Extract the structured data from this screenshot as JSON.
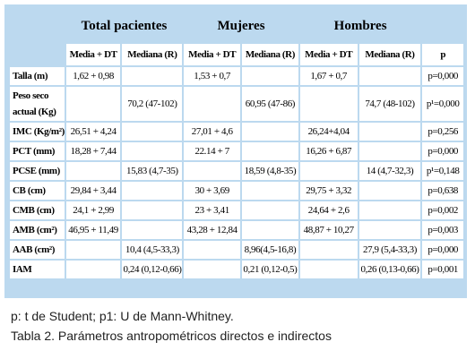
{
  "table": {
    "group_headers": [
      "Total pacientes",
      "Mujeres",
      "Hombres"
    ],
    "column_headers": [
      "Media + DT",
      "Mediana (R)",
      "Media + DT",
      "Mediana (R)",
      "Media + DT",
      "Mediana (R)",
      "p"
    ],
    "rows": [
      [
        "Talla (m)",
        "1,62 + 0,98",
        null,
        "1,53 + 0,7",
        null,
        "1,67 + 0,7",
        null,
        "p=0,000"
      ],
      [
        "Peso seco actual (Kg)",
        null,
        "70,2 (47-102)",
        null,
        "60,95 (47-86)",
        null,
        "74,7 (48-102)",
        "p¹=0,000"
      ],
      [
        "IMC (Kg/m²)",
        "26,51 + 4,24",
        null,
        "27,01 + 4,6",
        null,
        "26,24+4,04",
        null,
        "p=0,256"
      ],
      [
        "PCT (mm)",
        "18,28 + 7,44",
        null,
        "22.14 + 7",
        null,
        "16,26 + 6,87",
        null,
        "p=0,000"
      ],
      [
        "PCSE (mm)",
        null,
        "15,83 (4,7-35)",
        null,
        "18,59 (4,8-35)",
        null,
        "14 (4,7-32,3)",
        "p¹=0,148"
      ],
      [
        "CB (cm)",
        "29,84 + 3,44",
        null,
        "30 + 3,69",
        null,
        "29,75 + 3,32",
        null,
        "p=0,638"
      ],
      [
        "CMB (cm)",
        "24,1 + 2,99",
        null,
        "23 + 3,41",
        null,
        "24,64 + 2,6",
        null,
        "p=0,002"
      ],
      [
        "AMB (cm²)",
        "46,95 + 11,49",
        null,
        "43,28 + 12,84",
        null,
        "48,87 + 10,27",
        null,
        "p=0,003"
      ],
      [
        "AAB (cm²)",
        null,
        "10,4 (4,5-33,3)",
        null,
        "8,96(4,5-16,8)",
        null,
        "27,9 (5,4-33,3)",
        "p=0,000"
      ],
      [
        "IAM",
        null,
        "0,24 (0,12-0,66)",
        null,
        "0,21 (0,12-0,5)",
        null,
        "0,26 (0,13-0,66)",
        "p=0,001"
      ]
    ]
  },
  "footnote": "p: t de Student; p1: U de Mann-Whitney.",
  "caption": "Tabla 2. Parámetros antropométricos directos e indirectos"
}
